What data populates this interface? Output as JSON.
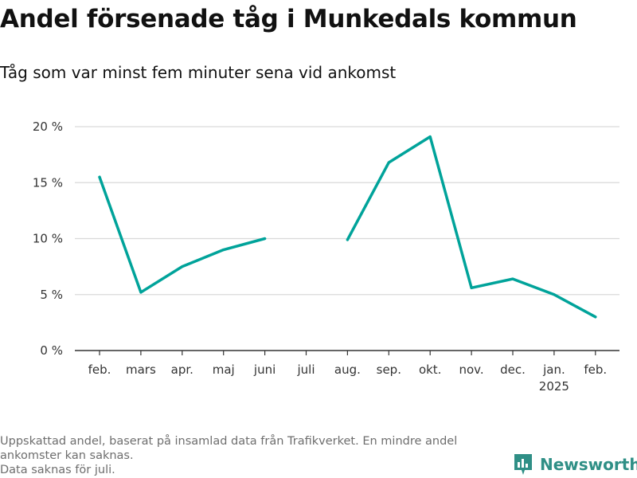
{
  "title": "Andel försenade tåg i Munkedals kommun",
  "subtitle": "Tåg som var minst fem minuter sena vid ankomst",
  "footnote_lines": [
    "Uppskattad andel, baserat på insamlad data från Trafikverket. En mindre andel ankomster kan saknas.",
    "Data saknas för juli."
  ],
  "brand": "Newsworthy",
  "colors": {
    "line": "#00a39a",
    "grid": "#d9d9d9",
    "axis": "#333333",
    "brand": "#2f8f86"
  },
  "chart_data": {
    "type": "line",
    "title": "Andel försenade tåg i Munkedals kommun",
    "categories": [
      "feb.",
      "mars",
      "apr.",
      "maj",
      "juni",
      "juli",
      "aug.",
      "sep.",
      "okt.",
      "nov.",
      "dec.",
      "jan.",
      "feb."
    ],
    "category_sublabels": [
      "",
      "",
      "",
      "",
      "",
      "",
      "",
      "",
      "",
      "",
      "",
      "2025",
      ""
    ],
    "series": [
      {
        "values": [
          15.5,
          5.2,
          7.5,
          9.0,
          10.0,
          null,
          9.9,
          16.8,
          19.1,
          5.6,
          6.4,
          5.0,
          3.0
        ]
      }
    ],
    "yticks": [
      0,
      5,
      10,
      15,
      20
    ],
    "ytick_labels": [
      "0 %",
      "5 %",
      "10 %",
      "15 %",
      "20 %"
    ],
    "ylim": [
      0,
      20
    ],
    "grid": true
  }
}
